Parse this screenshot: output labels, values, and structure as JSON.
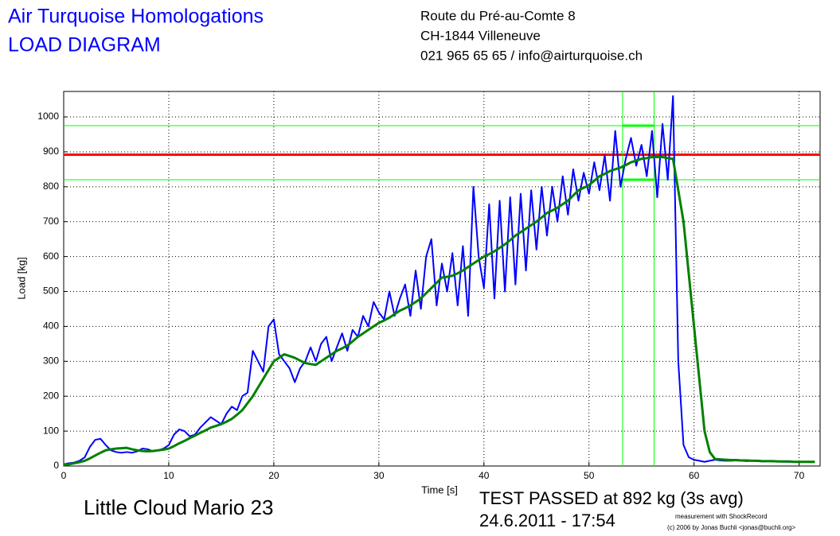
{
  "header": {
    "title": "Air Turquoise Homologations",
    "subtitle": "LOAD DIAGRAM",
    "address": [
      "Route du Pré-au-Comte 8",
      "CH-1844 Villeneuve",
      "021 965 65 65 / info@airturquoise.ch"
    ]
  },
  "chart_data": {
    "type": "line",
    "xlabel": "Time [s]",
    "ylabel": "Load [kg]",
    "grid": true,
    "xlim": [
      0,
      72
    ],
    "ylim": [
      0,
      1073
    ],
    "xticks": [
      0,
      10,
      20,
      30,
      40,
      50,
      60,
      70
    ],
    "yticks": [
      0,
      100,
      200,
      300,
      400,
      500,
      600,
      700,
      800,
      900,
      1000
    ],
    "x": [
      0,
      0.5,
      1,
      1.5,
      2,
      2.5,
      3,
      3.5,
      4,
      4.5,
      5,
      5.5,
      6,
      6.5,
      7,
      7.5,
      8,
      8.5,
      9,
      9.5,
      10,
      10.5,
      11,
      11.5,
      12,
      12.5,
      13,
      13.5,
      14,
      14.5,
      15,
      15.5,
      16,
      16.5,
      17,
      17.5,
      18,
      18.5,
      19,
      19.5,
      20,
      20.5,
      21,
      21.5,
      22,
      22.5,
      23,
      23.5,
      24,
      24.5,
      25,
      25.5,
      26,
      26.5,
      27,
      27.5,
      28,
      28.5,
      29,
      29.5,
      30,
      30.5,
      31,
      31.5,
      32,
      32.5,
      33,
      33.5,
      34,
      34.5,
      35,
      35.5,
      36,
      36.5,
      37,
      37.5,
      38,
      38.5,
      39,
      39.5,
      40,
      40.5,
      41,
      41.5,
      42,
      42.5,
      43,
      43.5,
      44,
      44.5,
      45,
      45.5,
      46,
      46.5,
      47,
      47.5,
      48,
      48.5,
      49,
      49.5,
      50,
      50.5,
      51,
      51.5,
      52,
      52.5,
      53,
      53.5,
      54,
      54.5,
      55,
      55.5,
      56,
      56.5,
      57,
      57.5,
      58,
      58.5,
      59,
      59.5,
      60,
      60.5,
      61,
      61.5,
      62,
      62.5,
      63,
      63.5,
      64,
      64.5,
      65,
      65.5,
      66,
      66.5,
      67,
      67.5,
      68,
      68.5,
      69,
      69.5,
      70,
      70.5,
      71,
      71.5
    ],
    "series": [
      {
        "color": "#0000ff",
        "width": 2,
        "values": [
          5,
          8,
          10,
          15,
          25,
          55,
          75,
          78,
          60,
          45,
          40,
          38,
          40,
          38,
          42,
          50,
          48,
          42,
          45,
          50,
          60,
          90,
          105,
          100,
          85,
          90,
          110,
          125,
          140,
          130,
          120,
          150,
          170,
          160,
          200,
          210,
          330,
          300,
          270,
          400,
          420,
          320,
          300,
          280,
          240,
          280,
          300,
          340,
          300,
          350,
          370,
          300,
          340,
          380,
          330,
          390,
          370,
          430,
          400,
          470,
          440,
          420,
          500,
          430,
          480,
          520,
          430,
          560,
          450,
          600,
          650,
          460,
          580,
          500,
          610,
          460,
          630,
          430,
          800,
          600,
          510,
          750,
          480,
          760,
          500,
          770,
          520,
          780,
          560,
          790,
          620,
          800,
          660,
          800,
          700,
          830,
          720,
          850,
          760,
          840,
          780,
          870,
          790,
          890,
          760,
          960,
          800,
          880,
          940,
          860,
          920,
          830,
          960,
          770,
          980,
          820,
          1060,
          300,
          60,
          25,
          18,
          15,
          12,
          15,
          18,
          16,
          15,
          15,
          16,
          15,
          14,
          15,
          14,
          13,
          14,
          13,
          13,
          12,
          12,
          12,
          12,
          12,
          11,
          11
        ]
      },
      {
        "color": "#008000",
        "width": 3,
        "values": [
          3,
          5,
          8,
          11,
          15,
          22,
          30,
          38,
          45,
          48,
          50,
          51,
          52,
          48,
          45,
          43,
          42,
          43,
          45,
          47,
          50,
          57,
          65,
          72,
          80,
          87,
          95,
          102,
          110,
          115,
          120,
          127,
          135,
          147,
          160,
          180,
          200,
          225,
          250,
          275,
          300,
          310,
          320,
          315,
          310,
          302,
          295,
          292,
          290,
          300,
          310,
          320,
          330,
          337,
          345,
          357,
          370,
          380,
          390,
          400,
          410,
          417,
          425,
          435,
          445,
          452,
          460,
          470,
          480,
          495,
          510,
          525,
          540,
          542,
          545,
          552,
          560,
          570,
          580,
          590,
          600,
          607,
          615,
          625,
          635,
          647,
          660,
          670,
          680,
          690,
          700,
          712,
          725,
          732,
          740,
          750,
          760,
          775,
          790,
          797,
          805,
          817,
          830,
          837,
          845,
          850,
          855,
          862,
          870,
          875,
          880,
          882,
          885,
          885,
          885,
          882,
          880,
          790,
          700,
          550,
          400,
          250,
          100,
          40,
          20,
          19,
          18,
          17,
          17,
          16,
          16,
          15,
          15,
          14,
          14,
          14,
          13,
          13,
          13,
          12,
          12,
          12,
          12,
          12
        ]
      }
    ],
    "hlines": [
      {
        "value": 892,
        "color": "#ff0000"
      },
      {
        "value": 975,
        "color": "#00ff00"
      },
      {
        "value": 820,
        "color": "#00ff00"
      }
    ],
    "vlines": [
      {
        "value": 53.2,
        "color": "#00ff00"
      },
      {
        "value": 56.2,
        "color": "#00ff00"
      }
    ],
    "annotations": [
      "Little Cloud Mario 23",
      "TEST PASSED at 892 kg (3s avg)",
      "24.6.2011 - 17:54",
      "measurement with ShockRecord",
      "(c) 2006 by Jonas Buchli <jonas@buchli.org>"
    ]
  }
}
